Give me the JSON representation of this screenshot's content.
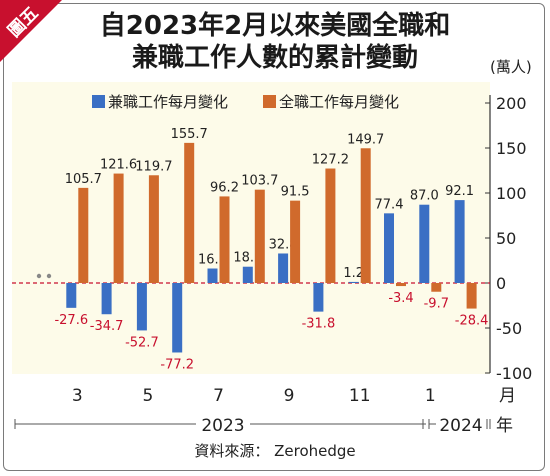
{
  "badge": "圖五",
  "title": {
    "line1": "自2023年2月以來美國全職和",
    "line2": "兼職工作人數的累計變動"
  },
  "unit_label": "(萬人)",
  "source": "資料來源： Zerohedge",
  "colors": {
    "part_time": "#3a6fc4",
    "full_time": "#d06a2c",
    "negative_label": "#c8102e",
    "zero_line": "#c8102e",
    "plot_bg": "#fdfbe9",
    "badge": "#c8102e"
  },
  "chart_data": {
    "type": "bar",
    "categories": [
      "2023-02",
      "2023-03",
      "2023-04",
      "2023-05",
      "2023-06",
      "2023-07",
      "2023-08",
      "2023-09",
      "2023-10",
      "2023-11",
      "2023-12",
      "2024-01",
      "2024-02"
    ],
    "series": [
      {
        "name": "兼職工作每月變化",
        "values": [
          null,
          -27.6,
          -34.7,
          -52.7,
          -77.2,
          16.1,
          18.1,
          32.8,
          -31.8,
          1.2,
          77.4,
          87.0,
          92.1
        ]
      },
      {
        "name": "全職工作每月變化",
        "values": [
          null,
          105.7,
          121.6,
          119.7,
          155.7,
          96.2,
          103.7,
          91.5,
          127.2,
          149.7,
          -3.4,
          -9.7,
          -28.4
        ]
      }
    ],
    "value_labels": {
      "part_time": [
        "",
        "-27.6",
        "-34.7",
        "-52.7",
        "-77.2",
        "16.1",
        "18.1",
        "32.8",
        "-31.8",
        "1.2",
        "77.4",
        "87.0",
        "92.1"
      ],
      "full_time": [
        "",
        "105.7",
        "121.6",
        "119.7",
        "155.7",
        "96.2",
        "103.7",
        "91.5",
        "127.2",
        "149.7",
        "-3.4",
        "-9.7",
        "-28.4"
      ]
    },
    "ylim": [
      -100,
      200
    ],
    "yticks": [
      -100,
      -50,
      0,
      50,
      100,
      150,
      200
    ],
    "ytick_labels": [
      "-100",
      "-50",
      "0",
      "50",
      "100",
      "150",
      "200"
    ],
    "x_tick_labels": [
      {
        "index": 1,
        "text": "3"
      },
      {
        "index": 3,
        "text": "5"
      },
      {
        "index": 5,
        "text": "7"
      },
      {
        "index": 7,
        "text": "9"
      },
      {
        "index": 9,
        "text": "11"
      },
      {
        "index": 11,
        "text": "1"
      }
    ],
    "x_unit": "月",
    "years": [
      {
        "text": "2023"
      },
      {
        "text": "2024"
      }
    ],
    "year_unit": "年",
    "grid": false,
    "legend": "top-left"
  }
}
